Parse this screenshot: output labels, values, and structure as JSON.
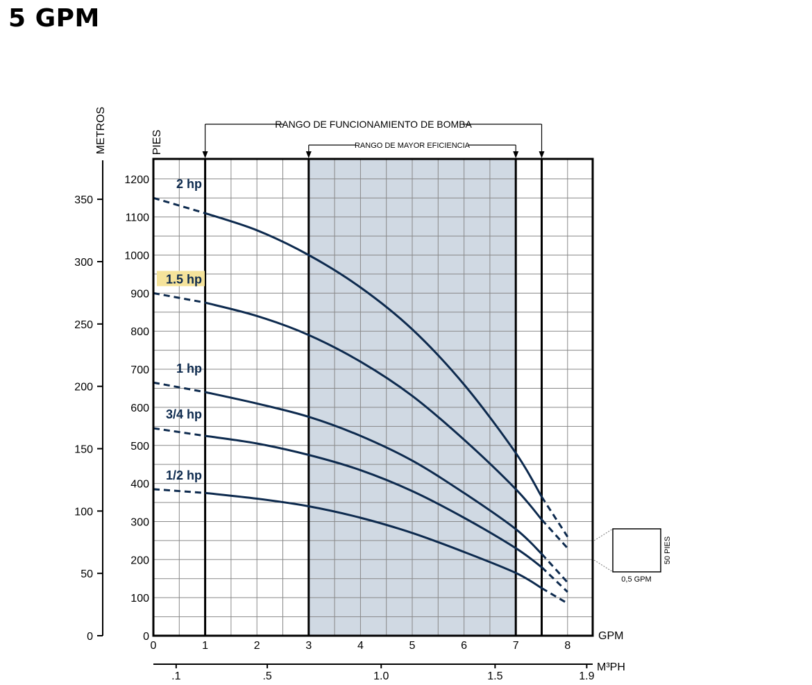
{
  "page_title": "5 GPM",
  "colors": {
    "curve": "#0d2a4e",
    "efficiency_band": "#d0d9e3",
    "highlight": "#f5e39b",
    "grid": "#888888",
    "frame": "#000000"
  },
  "chart_data": {
    "type": "line",
    "title": "",
    "x_unit": "GPM",
    "xlim": [
      0,
      8.5
    ],
    "x_ticks": [
      0,
      1,
      2,
      3,
      4,
      5,
      6,
      7,
      8
    ],
    "ylabel_left": "METROS",
    "ylabel_right": "PIES",
    "ylim_feet": [
      0,
      1250
    ],
    "y_ticks_feet": [
      0,
      100,
      200,
      300,
      400,
      500,
      600,
      700,
      800,
      900,
      1000,
      1100,
      1200
    ],
    "y_ticks_meters": [
      0,
      50,
      100,
      150,
      200,
      250,
      300,
      350
    ],
    "secondary_x_unit": "M³PH",
    "secondary_x_ticks": [
      {
        "label": ".1",
        "gpm": 0.44
      },
      {
        "label": ".5",
        "gpm": 2.2
      },
      {
        "label": "1.0",
        "gpm": 4.4
      },
      {
        "label": "1.5",
        "gpm": 6.6
      },
      {
        "label": "1.9",
        "gpm": 8.37
      }
    ],
    "operating_range": {
      "label": "RANGO DE FUNCIONAMIENTO DE BOMBA",
      "x": [
        1,
        7.5
      ]
    },
    "efficiency_range": {
      "label": "RANGO DE MAYOR EFICIENCIA",
      "x": [
        3,
        7
      ]
    },
    "series": [
      {
        "name": "2 hp",
        "highlighted": false,
        "solid": [
          [
            1,
            1110
          ],
          [
            2,
            1065
          ],
          [
            3,
            1000
          ],
          [
            4,
            915
          ],
          [
            5,
            805
          ],
          [
            6,
            660
          ],
          [
            7,
            480
          ],
          [
            7.5,
            365
          ]
        ],
        "dashed": [
          [
            0,
            1150
          ],
          [
            1,
            1110
          ],
          [
            7.5,
            365
          ],
          [
            8,
            260
          ]
        ]
      },
      {
        "name": "1.5 hp",
        "highlighted": true,
        "solid": [
          [
            1,
            875
          ],
          [
            2,
            840
          ],
          [
            3,
            790
          ],
          [
            4,
            720
          ],
          [
            5,
            630
          ],
          [
            6,
            515
          ],
          [
            7,
            385
          ],
          [
            7.5,
            305
          ]
        ],
        "dashed": [
          [
            0,
            900
          ],
          [
            1,
            875
          ],
          [
            7.5,
            305
          ],
          [
            8,
            230
          ]
        ]
      },
      {
        "name": "1 hp",
        "highlighted": false,
        "solid": [
          [
            1,
            640
          ],
          [
            2,
            610
          ],
          [
            3,
            575
          ],
          [
            4,
            525
          ],
          [
            5,
            460
          ],
          [
            6,
            375
          ],
          [
            7,
            280
          ],
          [
            7.5,
            215
          ]
        ],
        "dashed": [
          [
            0,
            665
          ],
          [
            1,
            640
          ],
          [
            7.5,
            215
          ],
          [
            8,
            140
          ]
        ]
      },
      {
        "name": "3/4 hp",
        "highlighted": false,
        "solid": [
          [
            1,
            525
          ],
          [
            2,
            505
          ],
          [
            3,
            475
          ],
          [
            4,
            435
          ],
          [
            5,
            380
          ],
          [
            6,
            310
          ],
          [
            7,
            230
          ],
          [
            7.5,
            180
          ]
        ],
        "dashed": [
          [
            0,
            545
          ],
          [
            1,
            525
          ],
          [
            7.5,
            180
          ],
          [
            8,
            115
          ]
        ]
      },
      {
        "name": "1/2 hp",
        "highlighted": false,
        "solid": [
          [
            1,
            375
          ],
          [
            2,
            360
          ],
          [
            3,
            340
          ],
          [
            4,
            310
          ],
          [
            5,
            270
          ],
          [
            6,
            220
          ],
          [
            7,
            165
          ],
          [
            7.5,
            125
          ]
        ],
        "dashed": [
          [
            0,
            385
          ],
          [
            1,
            375
          ],
          [
            7.5,
            125
          ],
          [
            8,
            85
          ]
        ]
      }
    ],
    "scale_legend": {
      "height_label": "50 PIES",
      "width_label": "0,5 GPM"
    }
  }
}
